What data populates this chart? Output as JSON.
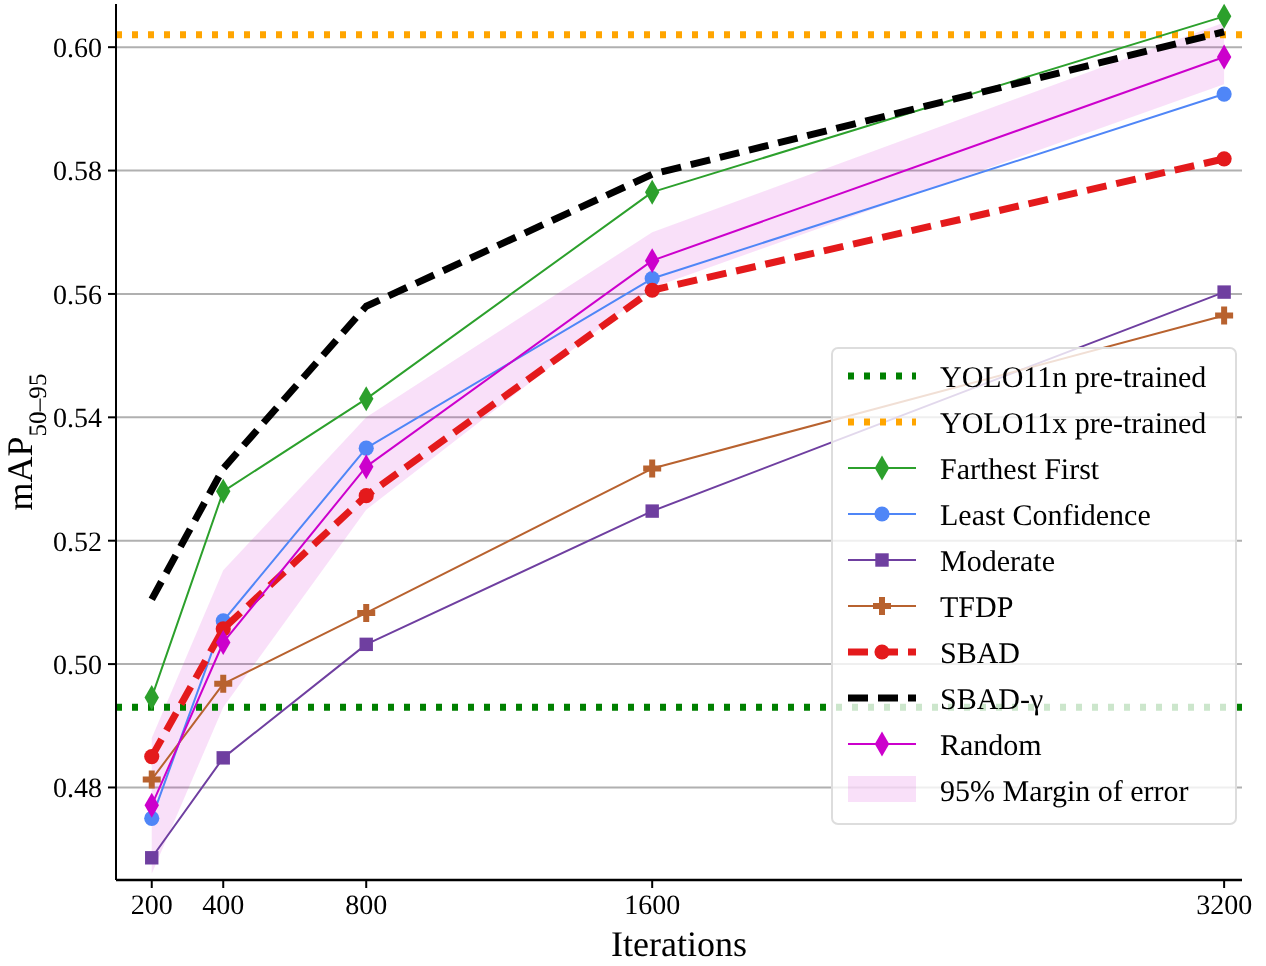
{
  "chart_data": {
    "type": "line",
    "xlabel": "Iterations",
    "ylabel": "mAP$_{50–95}$",
    "x": [
      200,
      400,
      800,
      1600,
      3200
    ],
    "xlim": [
      100,
      3250
    ],
    "xticks": [
      200,
      400,
      800,
      1600,
      3200
    ],
    "ylim": [
      0.465,
      0.607
    ],
    "yticks": [
      {
        "value": 0.48,
        "label": "0.48"
      },
      {
        "value": 0.5,
        "label": "0.50"
      },
      {
        "value": 0.52,
        "label": "0.52"
      },
      {
        "value": 0.54,
        "label": "0.54"
      },
      {
        "value": 0.56,
        "label": "0.56"
      },
      {
        "value": 0.58,
        "label": "0.58"
      },
      {
        "value": 0.6,
        "label": "0.60"
      }
    ],
    "grid": "y",
    "legend": "right",
    "ref_lines": [
      {
        "axis": "y",
        "value": 0.493,
        "label": "YOLO11n pre-trained",
        "color": "#008000",
        "line_style": "dotted"
      },
      {
        "axis": "y",
        "value": 0.602,
        "label": "YOLO11x pre-trained",
        "color": "#ffa500",
        "line_style": "dotted"
      }
    ],
    "series": [
      {
        "name": "Farthest First",
        "color": "#2ca02c",
        "values": [
          0.4946,
          0.528,
          0.543,
          0.5765,
          0.605
        ],
        "marker": "diamond",
        "line_style": "solid"
      },
      {
        "name": "Least Confidence",
        "color": "#4f86f7",
        "values": [
          0.475,
          0.507,
          0.535,
          0.5625,
          0.5924
        ],
        "marker": "circle",
        "line_style": "solid"
      },
      {
        "name": "Moderate",
        "color": "#6f3fa0",
        "values": [
          0.4686,
          0.4848,
          0.5032,
          0.5248,
          0.5603
        ],
        "marker": "square",
        "line_style": "solid"
      },
      {
        "name": "TFDP",
        "color": "#b8622f",
        "values": [
          0.4813,
          0.4968,
          0.5083,
          0.5317,
          0.5565
        ],
        "marker": "cross",
        "line_style": "solid"
      },
      {
        "name": "SBAD",
        "color": "#e41a1c",
        "values": [
          0.485,
          0.5057,
          0.5273,
          0.5606,
          0.5819
        ],
        "marker": "circle",
        "line_style": "dashed"
      },
      {
        "name": "SBAD-γ",
        "color": "#000000",
        "values": [
          0.5105,
          0.5317,
          0.558,
          0.5794,
          0.6025
        ],
        "marker": "none",
        "line_style": "dashed"
      },
      {
        "name": "Random",
        "color": "#cc00cc",
        "values": [
          0.4771,
          0.5035,
          0.532,
          0.5654,
          0.5984
        ],
        "marker": "diamond",
        "line_style": "solid",
        "lower": [
          0.466,
          0.493,
          0.525,
          0.561,
          0.594
        ],
        "upper": [
          0.488,
          0.5152,
          0.54,
          0.57,
          0.604
        ]
      }
    ],
    "annotations": [
      "95% Margin of error"
    ]
  }
}
